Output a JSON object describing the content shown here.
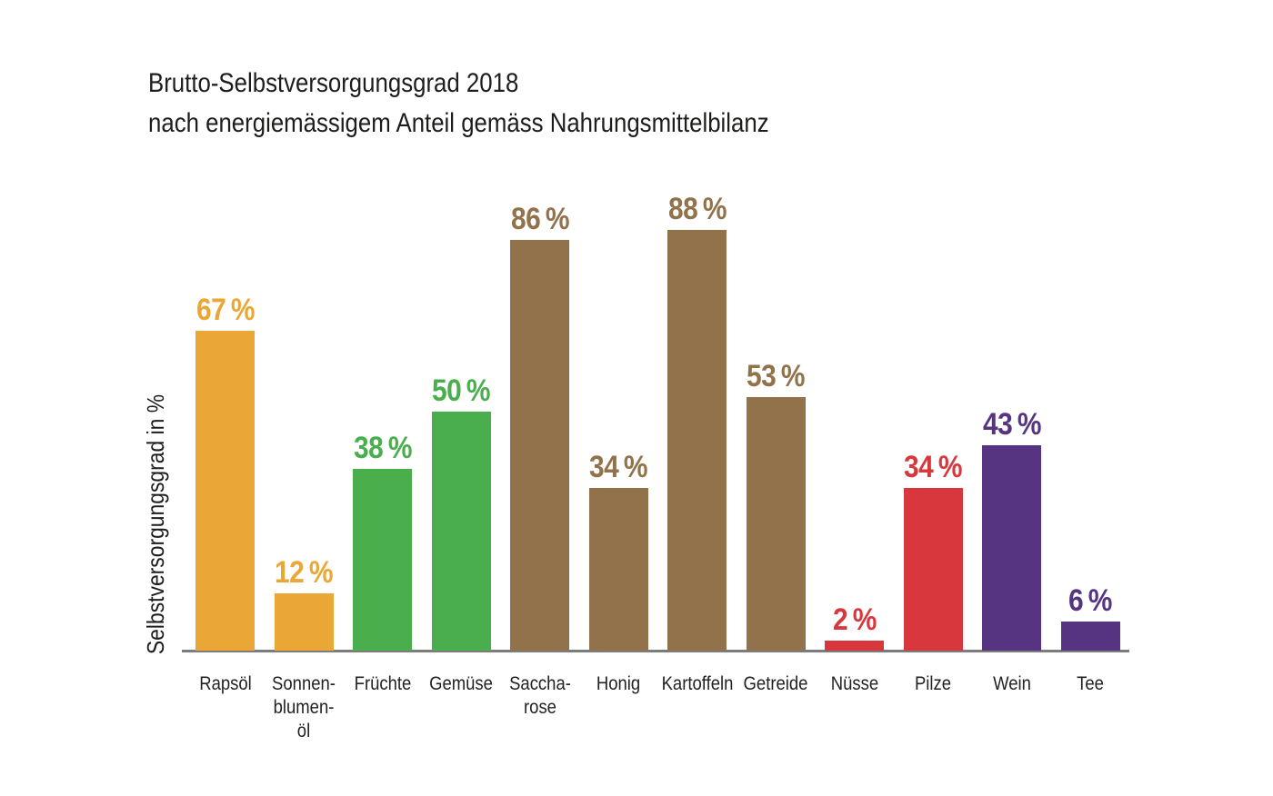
{
  "chart_data": {
    "type": "bar",
    "title": "Brutto-Selbstversorgungsgrad 2018",
    "subtitle": "nach energiemässigem Anteil gemäss Nahrungsmittelbilanz",
    "xlabel": "",
    "ylabel": "Selbstversorgungsgrad in %",
    "ylim": [
      0,
      100
    ],
    "grid": false,
    "legend": false,
    "categories": [
      "Rapsöl",
      "Sonnen-\nblumen-\nöl",
      "Früchte",
      "Gemüse",
      "Saccha-\nrose",
      "Honig",
      "Kartoffeln",
      "Getreide",
      "Nüsse",
      "Pilze",
      "Wein",
      "Tee"
    ],
    "values": [
      67,
      12,
      38,
      50,
      86,
      34,
      88,
      53,
      2,
      34,
      43,
      6
    ],
    "value_labels": [
      "67 %",
      "12 %",
      "38 %",
      "50 %",
      "86 %",
      "34 %",
      "88 %",
      "53 %",
      "2 %",
      "34 %",
      "43 %",
      "6 %"
    ],
    "bar_colors": [
      "#EBA736",
      "#EBA736",
      "#4BAE4D",
      "#4BAE4D",
      "#92724B",
      "#92724B",
      "#92724B",
      "#92724B",
      "#D8383D",
      "#D8383D",
      "#573481",
      "#573481"
    ],
    "color_groups": {
      "oils_orange": "#EBA736",
      "produce_green": "#4BAE4D",
      "staples_brown": "#92724B",
      "nuts_mushrooms_red": "#D8383D",
      "wine_tea_purple": "#573481"
    },
    "axis_line_color": "#7c7c7c",
    "text_color": "#1d1d1b"
  }
}
